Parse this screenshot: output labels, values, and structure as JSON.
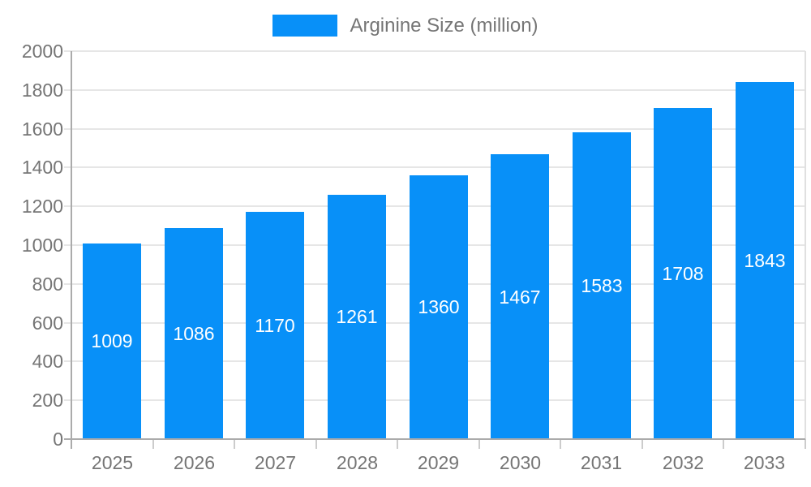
{
  "chart_data": {
    "type": "bar",
    "title": "",
    "legend": "Arginine Size (million)",
    "categories": [
      "2025",
      "2026",
      "2027",
      "2028",
      "2029",
      "2030",
      "2031",
      "2032",
      "2033"
    ],
    "values": [
      1009,
      1086,
      1170,
      1261,
      1360,
      1467,
      1583,
      1708,
      1843
    ],
    "xlabel": "",
    "ylabel": "",
    "ylim": [
      0,
      2000
    ],
    "ytick_step": 200,
    "grid": "horizontal",
    "legend_position": "top-center",
    "value_labels": "inside-middle",
    "colors": {
      "bar": "#0890f8",
      "gridline": "#e6e6e6",
      "axis": "#ababab",
      "category_tick": "#cccccc",
      "tick_text": "#757575",
      "legend_text": "#757575",
      "value_text": "#ffffff",
      "background": "#ffffff"
    }
  }
}
